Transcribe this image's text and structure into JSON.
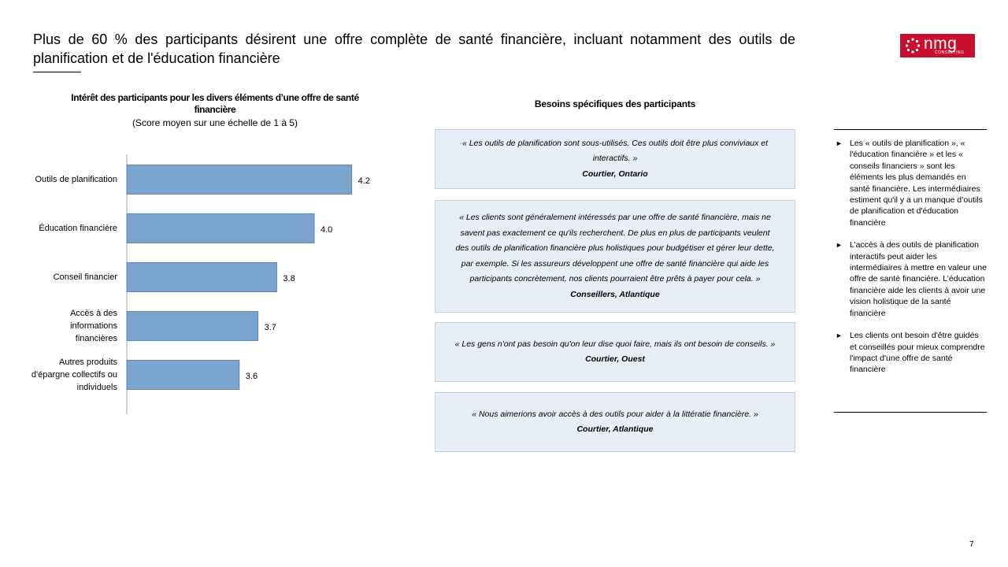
{
  "slide": {
    "title": "Plus de 60 % des participants désirent une offre complète de santé financière, incluant notamment des outils de planification et de l'éducation financière",
    "page_number": "7",
    "logo": {
      "text": "nmg",
      "subtext": "CONSULTING",
      "color": "#c8102e"
    }
  },
  "chart_data": {
    "type": "bar",
    "orientation": "horizontal",
    "title": "Intérêt des participants pour les divers éléments d’une offre de santé financière",
    "subtitle": "(Score moyen sur une échelle de 1 à 5)",
    "categories": [
      "Outils de planification",
      "Éducation financière",
      "Conseil financier",
      "Accès à des informations financières",
      "Autres produits d'épargne collectifs ou individuels"
    ],
    "values": [
      4.2,
      4.0,
      3.8,
      3.7,
      3.6
    ],
    "value_labels": [
      "4.2",
      "4.0",
      "3.8",
      "3.7",
      "3.6"
    ],
    "xlim": [
      3.0,
      4.5
    ],
    "bar_color": "#7aa4cc",
    "bar_border": "#5b86b5",
    "grid": false,
    "legend": "none"
  },
  "needs": {
    "title": "Besoins spécifiques des participants",
    "quotes": [
      {
        "text": "« Les outils de planification sont sous-utilisés. Ces outils doit être plus conviviaux et interactifs. »",
        "author": "Courtier, Ontario"
      },
      {
        "text": "« Les clients sont généralement intéressés par une offre de santé financière, mais ne savent pas exactement ce qu'ils recherchent. De plus en plus de participants veulent des outils de planification financière plus holistiques pour budgétiser et gérer leur dette, par exemple. Si les assureurs développent une offre de santé financière qui aide les participants concrètement, nos clients pourraient être prêts à payer pour cela. »",
        "author": "Conseillers, Atlantique"
      },
      {
        "text": "« Les gens n'ont pas besoin qu'on leur dise quoi faire, mais ils ont besoin de conseils. »",
        "author": "Courtier, Ouest"
      },
      {
        "text": "« Nous aimerions avoir accès à des outils pour aider à la littératie financière. »",
        "author": "Courtier, Atlantique"
      }
    ]
  },
  "sidebar": {
    "bullet_glyph": "►",
    "items": [
      "Les « outils de planification », « l'éducation financière » et les « conseils financiers » sont les éléments les plus demandés en santé financière. Les intermédiaires estiment qu'il y a un manque d’outils de planification et d'éducation financière",
      "L’accès à des outils de planification interactifs peut aider les intermédiaires à mettre en valeur une offre de santé financière. L’éducation financière aide les clients à avoir une vision holistique de la santé financière",
      "Les clients ont besoin d'être guidés et conseillés pour mieux comprendre l'impact d'une offre de santé financière"
    ]
  }
}
